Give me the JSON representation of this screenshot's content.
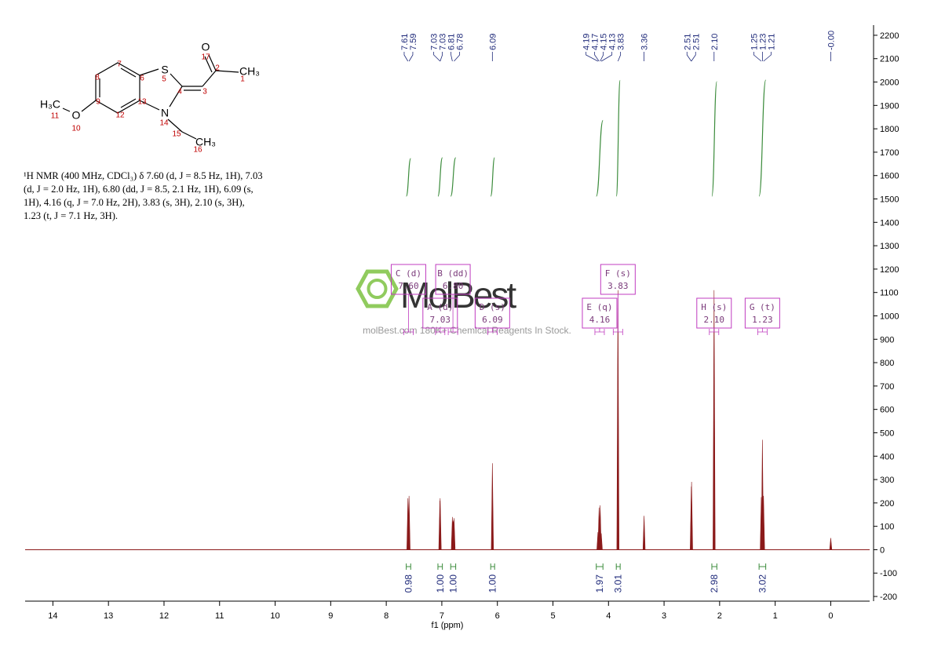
{
  "structure": {
    "atoms": [
      "S",
      "N",
      "O",
      "O",
      "H₃C",
      "CH₃",
      "CH₃"
    ],
    "numbers": [
      "1",
      "2",
      "3",
      "4",
      "5",
      "6",
      "7",
      "8",
      "9",
      "10",
      "11",
      "12",
      "13",
      "14",
      "15",
      "16",
      "17"
    ]
  },
  "nmr_text": "¹H NMR (400 MHz, CDCl₃) δ 7.60 (d, J = 8.5 Hz, 1H), 7.03 (d, J = 2.0 Hz, 1H), 6.80 (dd, J = 8.5, 2.1 Hz, 1H), 6.09 (s, 1H), 4.16 (q, J = 7.0 Hz, 2H), 3.83 (s, 3H), 2.10 (s, 3H), 1.23 (t, J = 7.1 Hz, 3H).",
  "watermark": {
    "logo": "MolBest",
    "tagline": "molBest.com 180K+ Chemical Reagents In Stock."
  },
  "chart_data": {
    "type": "nmr",
    "xlabel": "f1 (ppm)",
    "xlim": [
      14.5,
      -0.7
    ],
    "xticks": [
      14,
      13,
      12,
      11,
      10,
      9,
      8,
      7,
      6,
      5,
      4,
      3,
      2,
      1,
      0
    ],
    "ylim": [
      -220,
      2230
    ],
    "yticks": [
      2200,
      2100,
      2000,
      1900,
      1800,
      1700,
      1600,
      1500,
      1400,
      1300,
      1200,
      1100,
      1000,
      900,
      800,
      700,
      600,
      500,
      400,
      300,
      200,
      100,
      0,
      -100,
      -200
    ],
    "color": "#8b1a1a",
    "integral_color": "#3c8c3c",
    "label_color": "#1f2a7a",
    "multiplet_color": "#c03cc0",
    "peaks": {
      "ppm": [
        7.61,
        7.59,
        7.035,
        7.03,
        6.81,
        6.8,
        6.79,
        6.78,
        6.09,
        4.19,
        4.17,
        4.15,
        4.13,
        3.83,
        3.36,
        2.51,
        2.505,
        2.1,
        1.25,
        1.23,
        1.21,
        0
      ],
      "values": [
        220,
        230,
        210,
        220,
        140,
        120,
        125,
        135,
        370,
        75,
        180,
        190,
        70,
        1110,
        145,
        270,
        290,
        1110,
        225,
        470,
        230,
        50
      ]
    },
    "peak_labels": [
      7.61,
      7.59,
      7.03,
      7.03,
      6.81,
      6.78,
      6.09,
      4.19,
      4.17,
      4.15,
      4.13,
      3.83,
      3.36,
      2.51,
      2.51,
      {
        "value": 2.1,
        "label": "2.10"
      },
      1.25,
      1.23,
      1.21,
      {
        "value": 0,
        "label": "-0.00"
      }
    ],
    "integrals": {
      "ranges": [
        [
          7.64,
          7.56
        ],
        [
          7.07,
          6.99
        ],
        [
          6.84,
          6.75
        ],
        [
          6.12,
          6.05
        ],
        [
          4.22,
          4.1
        ],
        [
          3.86,
          3.79
        ],
        [
          2.14,
          2.05
        ],
        [
          1.29,
          1.17
        ]
      ],
      "values": [
        0.98,
        1,
        1,
        1,
        1.97,
        3.01,
        2.98,
        3.02
      ],
      "value_labels": [
        "0.98",
        "1.00",
        "1.00",
        "1.00",
        "1.97",
        "3.01",
        "2.98",
        "3.02"
      ]
    },
    "multiplets": {
      "names": [
        "C (d)",
        "A (d)",
        "B (dd)",
        "D (s)",
        "E (q)",
        "F (s)",
        "H (s)",
        "G (t)"
      ],
      "shifts": [
        7.6,
        7.03,
        6.8,
        6.09,
        4.16,
        3.83,
        2.1,
        1.23
      ],
      "shift_labels": [
        "7.60",
        "7.03",
        "6.80",
        "6.09",
        "4.16",
        "3.83",
        "2.10",
        "1.23"
      ]
    }
  }
}
